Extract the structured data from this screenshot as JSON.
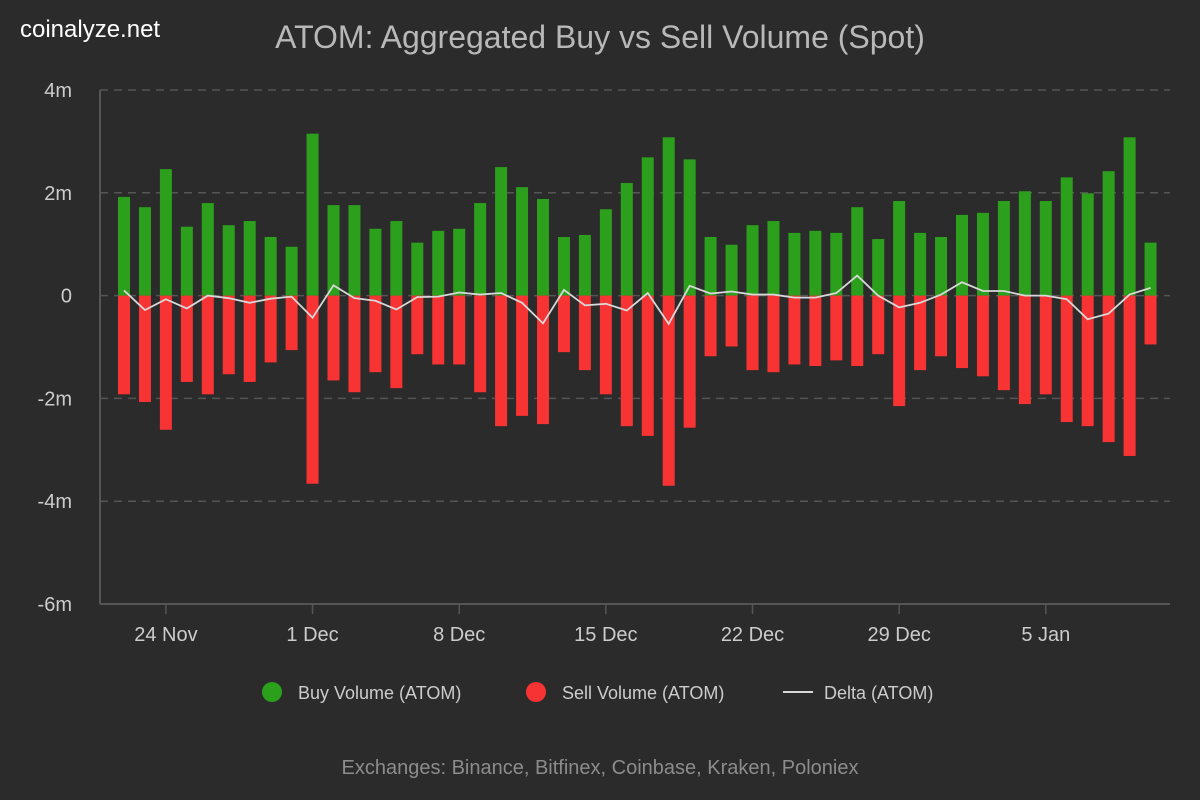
{
  "brand": "coinalyze.net",
  "chart_data": {
    "type": "bar",
    "title": "ATOM: Aggregated Buy vs Sell Volume (Spot)",
    "footer": "Exchanges: Binance, Bitfinex, Coinbase, Kraken, Poloniex",
    "x_start_date": "22 Nov",
    "categories": [
      "22 Nov",
      "23 Nov",
      "24 Nov",
      "25 Nov",
      "26 Nov",
      "27 Nov",
      "28 Nov",
      "29 Nov",
      "30 Nov",
      "1 Dec",
      "2 Dec",
      "3 Dec",
      "4 Dec",
      "5 Dec",
      "6 Dec",
      "7 Dec",
      "8 Dec",
      "9 Dec",
      "10 Dec",
      "11 Dec",
      "12 Dec",
      "13 Dec",
      "14 Dec",
      "15 Dec",
      "16 Dec",
      "17 Dec",
      "18 Dec",
      "19 Dec",
      "20 Dec",
      "21 Dec",
      "22 Dec",
      "23 Dec",
      "24 Dec",
      "25 Dec",
      "26 Dec",
      "27 Dec",
      "28 Dec",
      "29 Dec",
      "30 Dec",
      "31 Dec",
      "1 Jan",
      "2 Jan",
      "3 Jan",
      "4 Jan",
      "5 Jan",
      "6 Jan",
      "7 Jan",
      "8 Jan",
      "9 Jan",
      "10 Jan"
    ],
    "x_tick_labels": [
      "24 Nov",
      "1 Dec",
      "8 Dec",
      "15 Dec",
      "22 Dec",
      "29 Dec",
      "5 Jan"
    ],
    "y_tick_labels": [
      "4m",
      "2m",
      "0",
      "-2m",
      "-4m",
      "-6m"
    ],
    "y_ticks": [
      4,
      2,
      0,
      -2,
      -4,
      -6
    ],
    "ylim": [
      -6,
      4
    ],
    "y_unit": "millions",
    "grid": true,
    "legend_position": "bottom",
    "series": [
      {
        "name": "Buy Volume (ATOM)",
        "type": "bar",
        "color": "#2ca01c",
        "values": [
          1.92,
          1.72,
          2.46,
          1.34,
          1.8,
          1.37,
          1.45,
          1.14,
          0.95,
          3.15,
          1.76,
          1.76,
          1.3,
          1.45,
          1.03,
          1.26,
          1.3,
          1.8,
          2.5,
          2.11,
          1.88,
          1.14,
          1.18,
          1.68,
          2.19,
          2.69,
          3.08,
          2.65,
          1.14,
          0.99,
          1.37,
          1.45,
          1.22,
          1.26,
          1.22,
          1.72,
          1.1,
          1.84,
          1.22,
          1.14,
          1.57,
          1.61,
          1.84,
          2.03,
          1.84,
          2.3,
          1.99,
          2.42,
          3.08,
          1.03
        ]
      },
      {
        "name": "Sell Volume (ATOM)",
        "type": "bar",
        "color": "#f83333",
        "values": [
          -1.92,
          -2.07,
          -2.61,
          -1.68,
          -1.92,
          -1.53,
          -1.68,
          -1.3,
          -1.06,
          -3.66,
          -1.65,
          -1.88,
          -1.49,
          -1.8,
          -1.14,
          -1.34,
          -1.34,
          -1.88,
          -2.54,
          -2.34,
          -2.5,
          -1.1,
          -1.45,
          -1.92,
          -2.54,
          -2.73,
          -3.7,
          -2.57,
          -1.18,
          -0.99,
          -1.45,
          -1.49,
          -1.34,
          -1.37,
          -1.26,
          -1.37,
          -1.14,
          -2.15,
          -1.45,
          -1.18,
          -1.41,
          -1.57,
          -1.84,
          -2.11,
          -1.92,
          -2.46,
          -2.54,
          -2.85,
          -3.12,
          -0.95
        ]
      },
      {
        "name": "Delta (ATOM)",
        "type": "line",
        "color": "#d8d8d8",
        "values": [
          0.1,
          -0.28,
          -0.07,
          -0.25,
          0.0,
          -0.05,
          -0.14,
          -0.06,
          -0.02,
          -0.43,
          0.2,
          -0.05,
          -0.1,
          -0.27,
          -0.03,
          -0.02,
          0.06,
          0.02,
          0.05,
          -0.14,
          -0.54,
          0.11,
          -0.19,
          -0.16,
          -0.29,
          0.05,
          -0.55,
          0.19,
          0.04,
          0.08,
          0.02,
          0.02,
          -0.04,
          -0.04,
          0.05,
          0.39,
          0.0,
          -0.23,
          -0.14,
          0.02,
          0.26,
          0.09,
          0.09,
          0.0,
          0.0,
          -0.07,
          -0.46,
          -0.35,
          0.02,
          0.15
        ]
      }
    ]
  }
}
